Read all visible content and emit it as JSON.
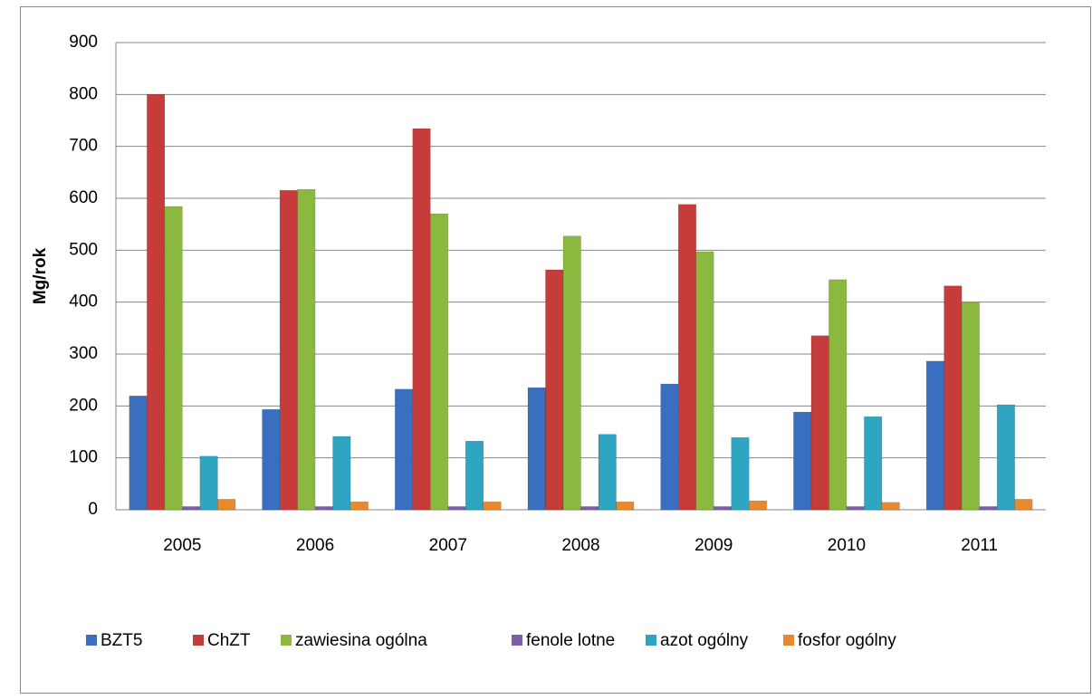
{
  "chart_data": {
    "type": "bar",
    "y_label": "Mg/rok",
    "categories": [
      "2005",
      "2006",
      "2007",
      "2008",
      "2009",
      "2010",
      "2011"
    ],
    "series": [
      {
        "name": "BZT5",
        "color": "#3a6fc0",
        "values": [
          214,
          188,
          227,
          230,
          237,
          183,
          281
        ]
      },
      {
        "name": "ChZT",
        "color": "#c63c3a",
        "values": [
          795,
          610,
          729,
          457,
          583,
          330,
          426
        ]
      },
      {
        "name": "zawiesina ogólna",
        "color": "#8bb83f",
        "values": [
          579,
          612,
          565,
          522,
          492,
          438,
          394
        ]
      },
      {
        "name": "fenole lotne",
        "color": "#7a5ea8",
        "values": [
          1,
          1,
          1,
          1,
          1,
          1,
          1
        ]
      },
      {
        "name": "azot ogólny",
        "color": "#2fa5c2",
        "values": [
          98,
          136,
          127,
          140,
          134,
          174,
          197
        ]
      },
      {
        "name": "fosfor ogólny",
        "color": "#e8892e",
        "values": [
          15,
          10,
          10,
          10,
          12,
          9,
          15
        ]
      }
    ],
    "ylim": [
      0,
      900
    ],
    "yticks": [
      0,
      100,
      200,
      300,
      400,
      500,
      600,
      700,
      800,
      900
    ],
    "grid": true,
    "legend": "bottom"
  }
}
